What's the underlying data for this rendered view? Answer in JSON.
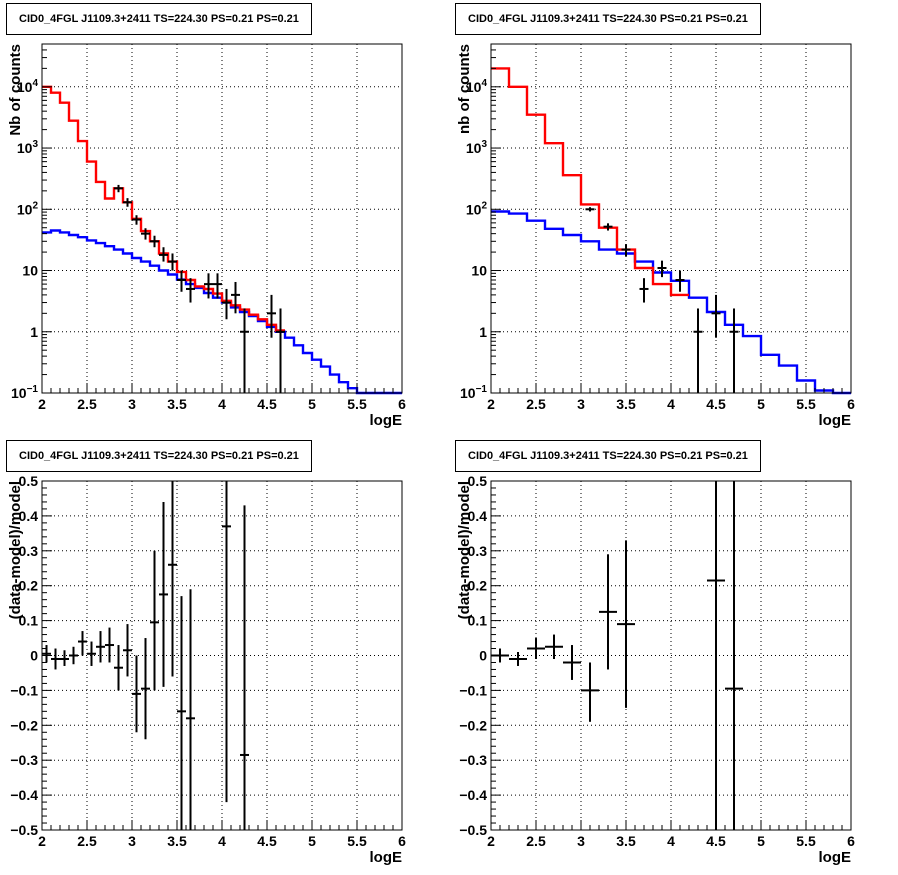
{
  "chart_data": [
    {
      "type": "step-histogram",
      "title": "CID0_4FGL J1109.3+2411 TS=224.30 PS=0.21 PS=0.21",
      "xlabel": "logE",
      "ylabel": "Nb of counts",
      "xlim": [
        2,
        6
      ],
      "ylim": [
        0.1,
        50000
      ],
      "ylog": true,
      "grid": true,
      "x_ticks": [
        "2",
        "2.5",
        "3",
        "3.5",
        "4",
        "4.5",
        "5",
        "5.5",
        "6"
      ],
      "y_ticks": [
        {
          "v": 0.1,
          "base": "10",
          "exp": "−1"
        },
        {
          "v": 1,
          "label": "1"
        },
        {
          "v": 10,
          "label": "10"
        },
        {
          "v": 100,
          "base": "10",
          "exp": "2"
        },
        {
          "v": 1000,
          "base": "10",
          "exp": "3"
        },
        {
          "v": 10000,
          "base": "10",
          "exp": "4"
        }
      ],
      "series": [
        {
          "color": "#0000ff",
          "kind": "step",
          "bins": [
            2.0,
            2.1,
            2.2,
            2.3,
            2.4,
            2.5,
            2.6,
            2.7,
            2.8,
            2.9,
            3.0,
            3.1,
            3.2,
            3.3,
            3.4,
            3.5,
            3.6,
            3.7,
            3.8,
            3.9,
            4.0,
            4.1,
            4.2,
            4.3,
            4.4,
            4.5,
            4.6,
            4.7,
            4.8,
            4.9,
            5.0,
            5.1,
            5.2,
            5.3,
            5.4,
            5.5,
            5.6,
            5.7,
            5.8,
            5.9,
            6.0
          ],
          "values": [
            42,
            45,
            42,
            38,
            35,
            31,
            28,
            25,
            22,
            19,
            16,
            14,
            12,
            10,
            8.6,
            7.1,
            6,
            5.2,
            4.3,
            3.6,
            3,
            2.5,
            2.1,
            1.8,
            1.5,
            1.2,
            1,
            0.8,
            0.6,
            0.45,
            0.35,
            0.27,
            0.2,
            0.15,
            0.12,
            0.1,
            0.1,
            0.1,
            0.1,
            0.1
          ]
        },
        {
          "color": "#ff0000",
          "kind": "step",
          "bins": [
            2.0,
            2.1,
            2.2,
            2.3,
            2.4,
            2.5,
            2.6,
            2.7,
            2.8,
            2.9,
            3.0,
            3.1,
            3.2,
            3.3,
            3.4,
            3.5,
            3.6,
            3.7,
            3.8,
            3.9,
            4.0,
            4.1,
            4.2,
            4.3,
            4.4,
            4.5,
            4.6,
            4.7
          ],
          "values": [
            10000,
            8000,
            5500,
            2800,
            1300,
            600,
            280,
            150,
            220,
            130,
            70,
            44,
            30,
            19,
            14,
            9.5,
            7,
            5.5,
            5,
            4.2,
            3.2,
            2.7,
            2.3,
            1.9,
            1.6,
            1.3,
            1.05
          ]
        },
        {
          "color": "#000000",
          "kind": "errorbars",
          "points": [
            {
              "x": 2.85,
              "y": 220,
              "lo": 190,
              "hi": 250
            },
            {
              "x": 2.95,
              "y": 130,
              "lo": 110,
              "hi": 152
            },
            {
              "x": 3.05,
              "y": 68,
              "lo": 56,
              "hi": 80
            },
            {
              "x": 3.15,
              "y": 40,
              "lo": 32,
              "hi": 49
            },
            {
              "x": 3.25,
              "y": 30,
              "lo": 24,
              "hi": 37
            },
            {
              "x": 3.35,
              "y": 18,
              "lo": 14,
              "hi": 24
            },
            {
              "x": 3.45,
              "y": 14,
              "lo": 10,
              "hi": 19
            },
            {
              "x": 3.55,
              "y": 7,
              "lo": 4.5,
              "hi": 10
            },
            {
              "x": 3.65,
              "y": 5,
              "lo": 3,
              "hi": 7.5
            },
            {
              "x": 3.85,
              "y": 6,
              "lo": 3.5,
              "hi": 9
            },
            {
              "x": 3.95,
              "y": 6,
              "lo": 3.5,
              "hi": 9
            },
            {
              "x": 4.05,
              "y": 3,
              "lo": 1.6,
              "hi": 5
            },
            {
              "x": 4.15,
              "y": 4,
              "lo": 2,
              "hi": 6.5
            },
            {
              "x": 4.25,
              "y": 1,
              "lo": 0.1,
              "hi": 2.4
            },
            {
              "x": 4.55,
              "y": 2,
              "lo": 0.8,
              "hi": 4
            },
            {
              "x": 4.65,
              "y": 1,
              "lo": 0.1,
              "hi": 2.4
            }
          ]
        }
      ]
    },
    {
      "type": "step-histogram",
      "title": "CID0_4FGL J1109.3+2411 TS=224.30 PS=0.21 PS=0.21",
      "xlabel": "logE",
      "ylabel": "nb of counts",
      "xlim": [
        2,
        6
      ],
      "ylim": [
        0.1,
        50000
      ],
      "ylog": true,
      "grid": true,
      "x_ticks": [
        "2",
        "2.5",
        "3",
        "3.5",
        "4",
        "4.5",
        "5",
        "5.5",
        "6"
      ],
      "y_ticks": [
        {
          "v": 0.1,
          "base": "10",
          "exp": "−1"
        },
        {
          "v": 1,
          "label": "1"
        },
        {
          "v": 10,
          "label": "10"
        },
        {
          "v": 100,
          "base": "10",
          "exp": "2"
        },
        {
          "v": 1000,
          "base": "10",
          "exp": "3"
        },
        {
          "v": 10000,
          "base": "10",
          "exp": "4"
        }
      ],
      "series": [
        {
          "color": "#0000ff",
          "kind": "step",
          "bins": [
            2.0,
            2.2,
            2.4,
            2.6,
            2.8,
            3.0,
            3.2,
            3.4,
            3.6,
            3.8,
            4.0,
            4.2,
            4.4,
            4.6,
            4.8,
            5.0,
            5.2,
            5.4,
            5.6,
            5.8,
            6.0
          ],
          "values": [
            92,
            85,
            65,
            48,
            38,
            30,
            22,
            19,
            14,
            9.3,
            6.8,
            3.6,
            2.1,
            1.3,
            0.85,
            0.42,
            0.28,
            0.16,
            0.11,
            0.1
          ]
        },
        {
          "color": "#ff0000",
          "kind": "step",
          "bins": [
            2.0,
            2.2,
            2.4,
            2.6,
            2.8,
            3.0,
            3.2,
            3.4,
            3.6,
            3.8,
            4.0,
            4.2
          ],
          "values": [
            20000,
            10000,
            3500,
            1200,
            360,
            120,
            50,
            22,
            11,
            6,
            4
          ]
        },
        {
          "color": "#000000",
          "kind": "errorbars",
          "points": [
            {
              "x": 3.1,
              "y": 100,
              "lo": 92,
              "hi": 108
            },
            {
              "x": 3.3,
              "y": 52,
              "lo": 45,
              "hi": 59
            },
            {
              "x": 3.5,
              "y": 22,
              "lo": 17,
              "hi": 27
            },
            {
              "x": 3.7,
              "y": 5,
              "lo": 3,
              "hi": 7.5
            },
            {
              "x": 3.9,
              "y": 11,
              "lo": 7.8,
              "hi": 14.5
            },
            {
              "x": 4.1,
              "y": 7,
              "lo": 4.5,
              "hi": 10
            },
            {
              "x": 4.3,
              "y": 1,
              "lo": 0.1,
              "hi": 2.4
            },
            {
              "x": 4.5,
              "y": 2,
              "lo": 0.8,
              "hi": 4
            },
            {
              "x": 4.7,
              "y": 1,
              "lo": 0.1,
              "hi": 2.4
            }
          ]
        }
      ]
    },
    {
      "type": "errorbar",
      "title": "CID0_4FGL J1109.3+2411 TS=224.30 PS=0.21 PS=0.21",
      "xlabel": "logE",
      "ylabel": "(data-model)/model",
      "xlim": [
        2,
        6
      ],
      "ylim": [
        -0.5,
        0.5
      ],
      "ylog": false,
      "grid": true,
      "x_ticks": [
        "2",
        "2.5",
        "3",
        "3.5",
        "4",
        "4.5",
        "5",
        "5.5",
        "6"
      ],
      "y_ticks": [
        {
          "v": -0.5,
          "label": "−0.5"
        },
        {
          "v": -0.4,
          "label": "−0.4"
        },
        {
          "v": -0.3,
          "label": "−0.3"
        },
        {
          "v": -0.2,
          "label": "−0.2"
        },
        {
          "v": -0.1,
          "label": "−0.1"
        },
        {
          "v": 0,
          "label": "0"
        },
        {
          "v": 0.1,
          "label": "0.1"
        },
        {
          "v": 0.2,
          "label": "0.2"
        },
        {
          "v": 0.3,
          "label": "0.3"
        },
        {
          "v": 0.4,
          "label": "0.4"
        },
        {
          "v": 0.5,
          "label": "0.5"
        }
      ],
      "series": [
        {
          "color": "#000000",
          "kind": "errorbars",
          "halfwidth": 0.05,
          "points": [
            {
              "x": 2.05,
              "y": 0.005,
              "lo": -0.02,
              "hi": 0.03
            },
            {
              "x": 2.15,
              "y": -0.01,
              "lo": -0.04,
              "hi": 0.02
            },
            {
              "x": 2.25,
              "y": -0.01,
              "lo": -0.03,
              "hi": 0.015
            },
            {
              "x": 2.35,
              "y": 0.0,
              "lo": -0.025,
              "hi": 0.025
            },
            {
              "x": 2.45,
              "y": 0.04,
              "lo": 0.0,
              "hi": 0.07
            },
            {
              "x": 2.55,
              "y": 0.005,
              "lo": -0.03,
              "hi": 0.04
            },
            {
              "x": 2.65,
              "y": 0.025,
              "lo": -0.02,
              "hi": 0.07
            },
            {
              "x": 2.75,
              "y": 0.03,
              "lo": -0.02,
              "hi": 0.08
            },
            {
              "x": 2.85,
              "y": -0.035,
              "lo": -0.1,
              "hi": 0.03
            },
            {
              "x": 2.95,
              "y": 0.015,
              "lo": -0.06,
              "hi": 0.09
            },
            {
              "x": 3.05,
              "y": -0.11,
              "lo": -0.22,
              "hi": 0.0
            },
            {
              "x": 3.15,
              "y": -0.095,
              "lo": -0.24,
              "hi": 0.05
            },
            {
              "x": 3.25,
              "y": 0.095,
              "lo": -0.1,
              "hi": 0.3
            },
            {
              "x": 3.35,
              "y": 0.175,
              "lo": -0.09,
              "hi": 0.44
            },
            {
              "x": 3.45,
              "y": 0.26,
              "lo": -0.06,
              "hi": 0.5
            },
            {
              "x": 3.55,
              "y": -0.16,
              "lo": -0.5,
              "hi": 0.17
            },
            {
              "x": 3.65,
              "y": -0.18,
              "lo": -0.5,
              "hi": 0.19
            },
            {
              "x": 4.05,
              "y": 0.37,
              "lo": -0.42,
              "hi": 0.5
            },
            {
              "x": 4.25,
              "y": -0.285,
              "lo": -0.5,
              "hi": 0.43
            }
          ]
        }
      ]
    },
    {
      "type": "errorbar",
      "title": "CID0_4FGL J1109.3+2411 TS=224.30 PS=0.21 PS=0.21",
      "xlabel": "logE",
      "ylabel": "(data-model)/model",
      "xlim": [
        2,
        6
      ],
      "ylim": [
        -0.5,
        0.5
      ],
      "ylog": false,
      "grid": true,
      "x_ticks": [
        "2",
        "2.5",
        "3",
        "3.5",
        "4",
        "4.5",
        "5",
        "5.5",
        "6"
      ],
      "y_ticks": [
        {
          "v": -0.5,
          "label": "−0.5"
        },
        {
          "v": -0.4,
          "label": "−0.4"
        },
        {
          "v": -0.3,
          "label": "−0.3"
        },
        {
          "v": -0.2,
          "label": "−0.2"
        },
        {
          "v": -0.1,
          "label": "−0.1"
        },
        {
          "v": 0,
          "label": "0"
        },
        {
          "v": 0.1,
          "label": "0.1"
        },
        {
          "v": 0.2,
          "label": "0.2"
        },
        {
          "v": 0.3,
          "label": "0.3"
        },
        {
          "v": 0.4,
          "label": "0.4"
        },
        {
          "v": 0.5,
          "label": "0.5"
        }
      ],
      "series": [
        {
          "color": "#000000",
          "kind": "errorbars",
          "halfwidth": 0.1,
          "points": [
            {
              "x": 2.1,
              "y": 0.0,
              "lo": -0.02,
              "hi": 0.02
            },
            {
              "x": 2.3,
              "y": -0.01,
              "lo": -0.03,
              "hi": 0.01
            },
            {
              "x": 2.5,
              "y": 0.02,
              "lo": -0.01,
              "hi": 0.05
            },
            {
              "x": 2.7,
              "y": 0.025,
              "lo": -0.01,
              "hi": 0.06
            },
            {
              "x": 2.9,
              "y": -0.02,
              "lo": -0.07,
              "hi": 0.03
            },
            {
              "x": 3.1,
              "y": -0.1,
              "lo": -0.19,
              "hi": -0.02
            },
            {
              "x": 3.3,
              "y": 0.125,
              "lo": -0.04,
              "hi": 0.29
            },
            {
              "x": 3.5,
              "y": 0.09,
              "lo": -0.15,
              "hi": 0.33
            },
            {
              "x": 4.5,
              "y": 0.215,
              "lo": -0.5,
              "hi": 0.5
            },
            {
              "x": 4.7,
              "y": -0.095,
              "lo": -0.5,
              "hi": 0.5
            }
          ]
        }
      ]
    }
  ]
}
